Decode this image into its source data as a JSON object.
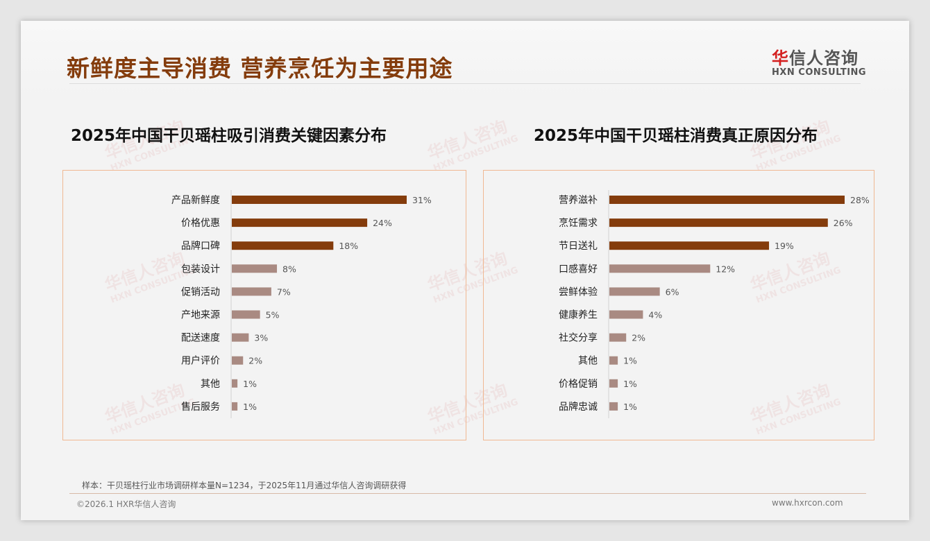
{
  "title": "新鲜度主导消费 营养烹饪为主要用途",
  "logo": {
    "cn_first": "华",
    "cn_rest": "信人咨询",
    "en": "HXN CONSULTING"
  },
  "watermark": {
    "cn": "华信人咨询",
    "en": "HXN CONSULTING"
  },
  "colors": {
    "primary": "#843C0C",
    "secondary": "#A98A82",
    "title": "#843C0C"
  },
  "chart_data": [
    {
      "type": "bar",
      "orientation": "horizontal",
      "title": "2025年中国干贝瑶柱吸引消费关键因素分布",
      "categories": [
        "产品新鲜度",
        "价格优惠",
        "品牌口碑",
        "包装设计",
        "促销活动",
        "产地来源",
        "配送速度",
        "用户评价",
        "其他",
        "售后服务"
      ],
      "values": [
        31,
        24,
        18,
        8,
        7,
        5,
        3,
        2,
        1,
        1
      ],
      "labels": [
        "31%",
        "24%",
        "18%",
        "8%",
        "7%",
        "5%",
        "3%",
        "2%",
        "1%",
        "1%"
      ],
      "highlight_top": 3,
      "xlim": [
        0,
        31
      ]
    },
    {
      "type": "bar",
      "orientation": "horizontal",
      "title": "2025年中国干贝瑶柱消费真正原因分布",
      "categories": [
        "营养滋补",
        "烹饪需求",
        "节日送礼",
        "口感喜好",
        "尝鲜体验",
        "健康养生",
        "社交分享",
        "其他",
        "价格促销",
        "品牌忠诚"
      ],
      "values": [
        28,
        26,
        19,
        12,
        6,
        4,
        2,
        1,
        1,
        1
      ],
      "labels": [
        "28%",
        "26%",
        "19%",
        "12%",
        "6%",
        "4%",
        "2%",
        "1%",
        "1%",
        "1%"
      ],
      "highlight_top": 3,
      "xlim": [
        0,
        28
      ]
    }
  ],
  "footer": {
    "note": "样本：干贝瑶柱行业市场调研样本量N=1234，于2025年11月通过华信人咨询调研获得",
    "copyright": "©2026.1 HXR华信人咨询",
    "site": "www.hxrcon.com"
  }
}
